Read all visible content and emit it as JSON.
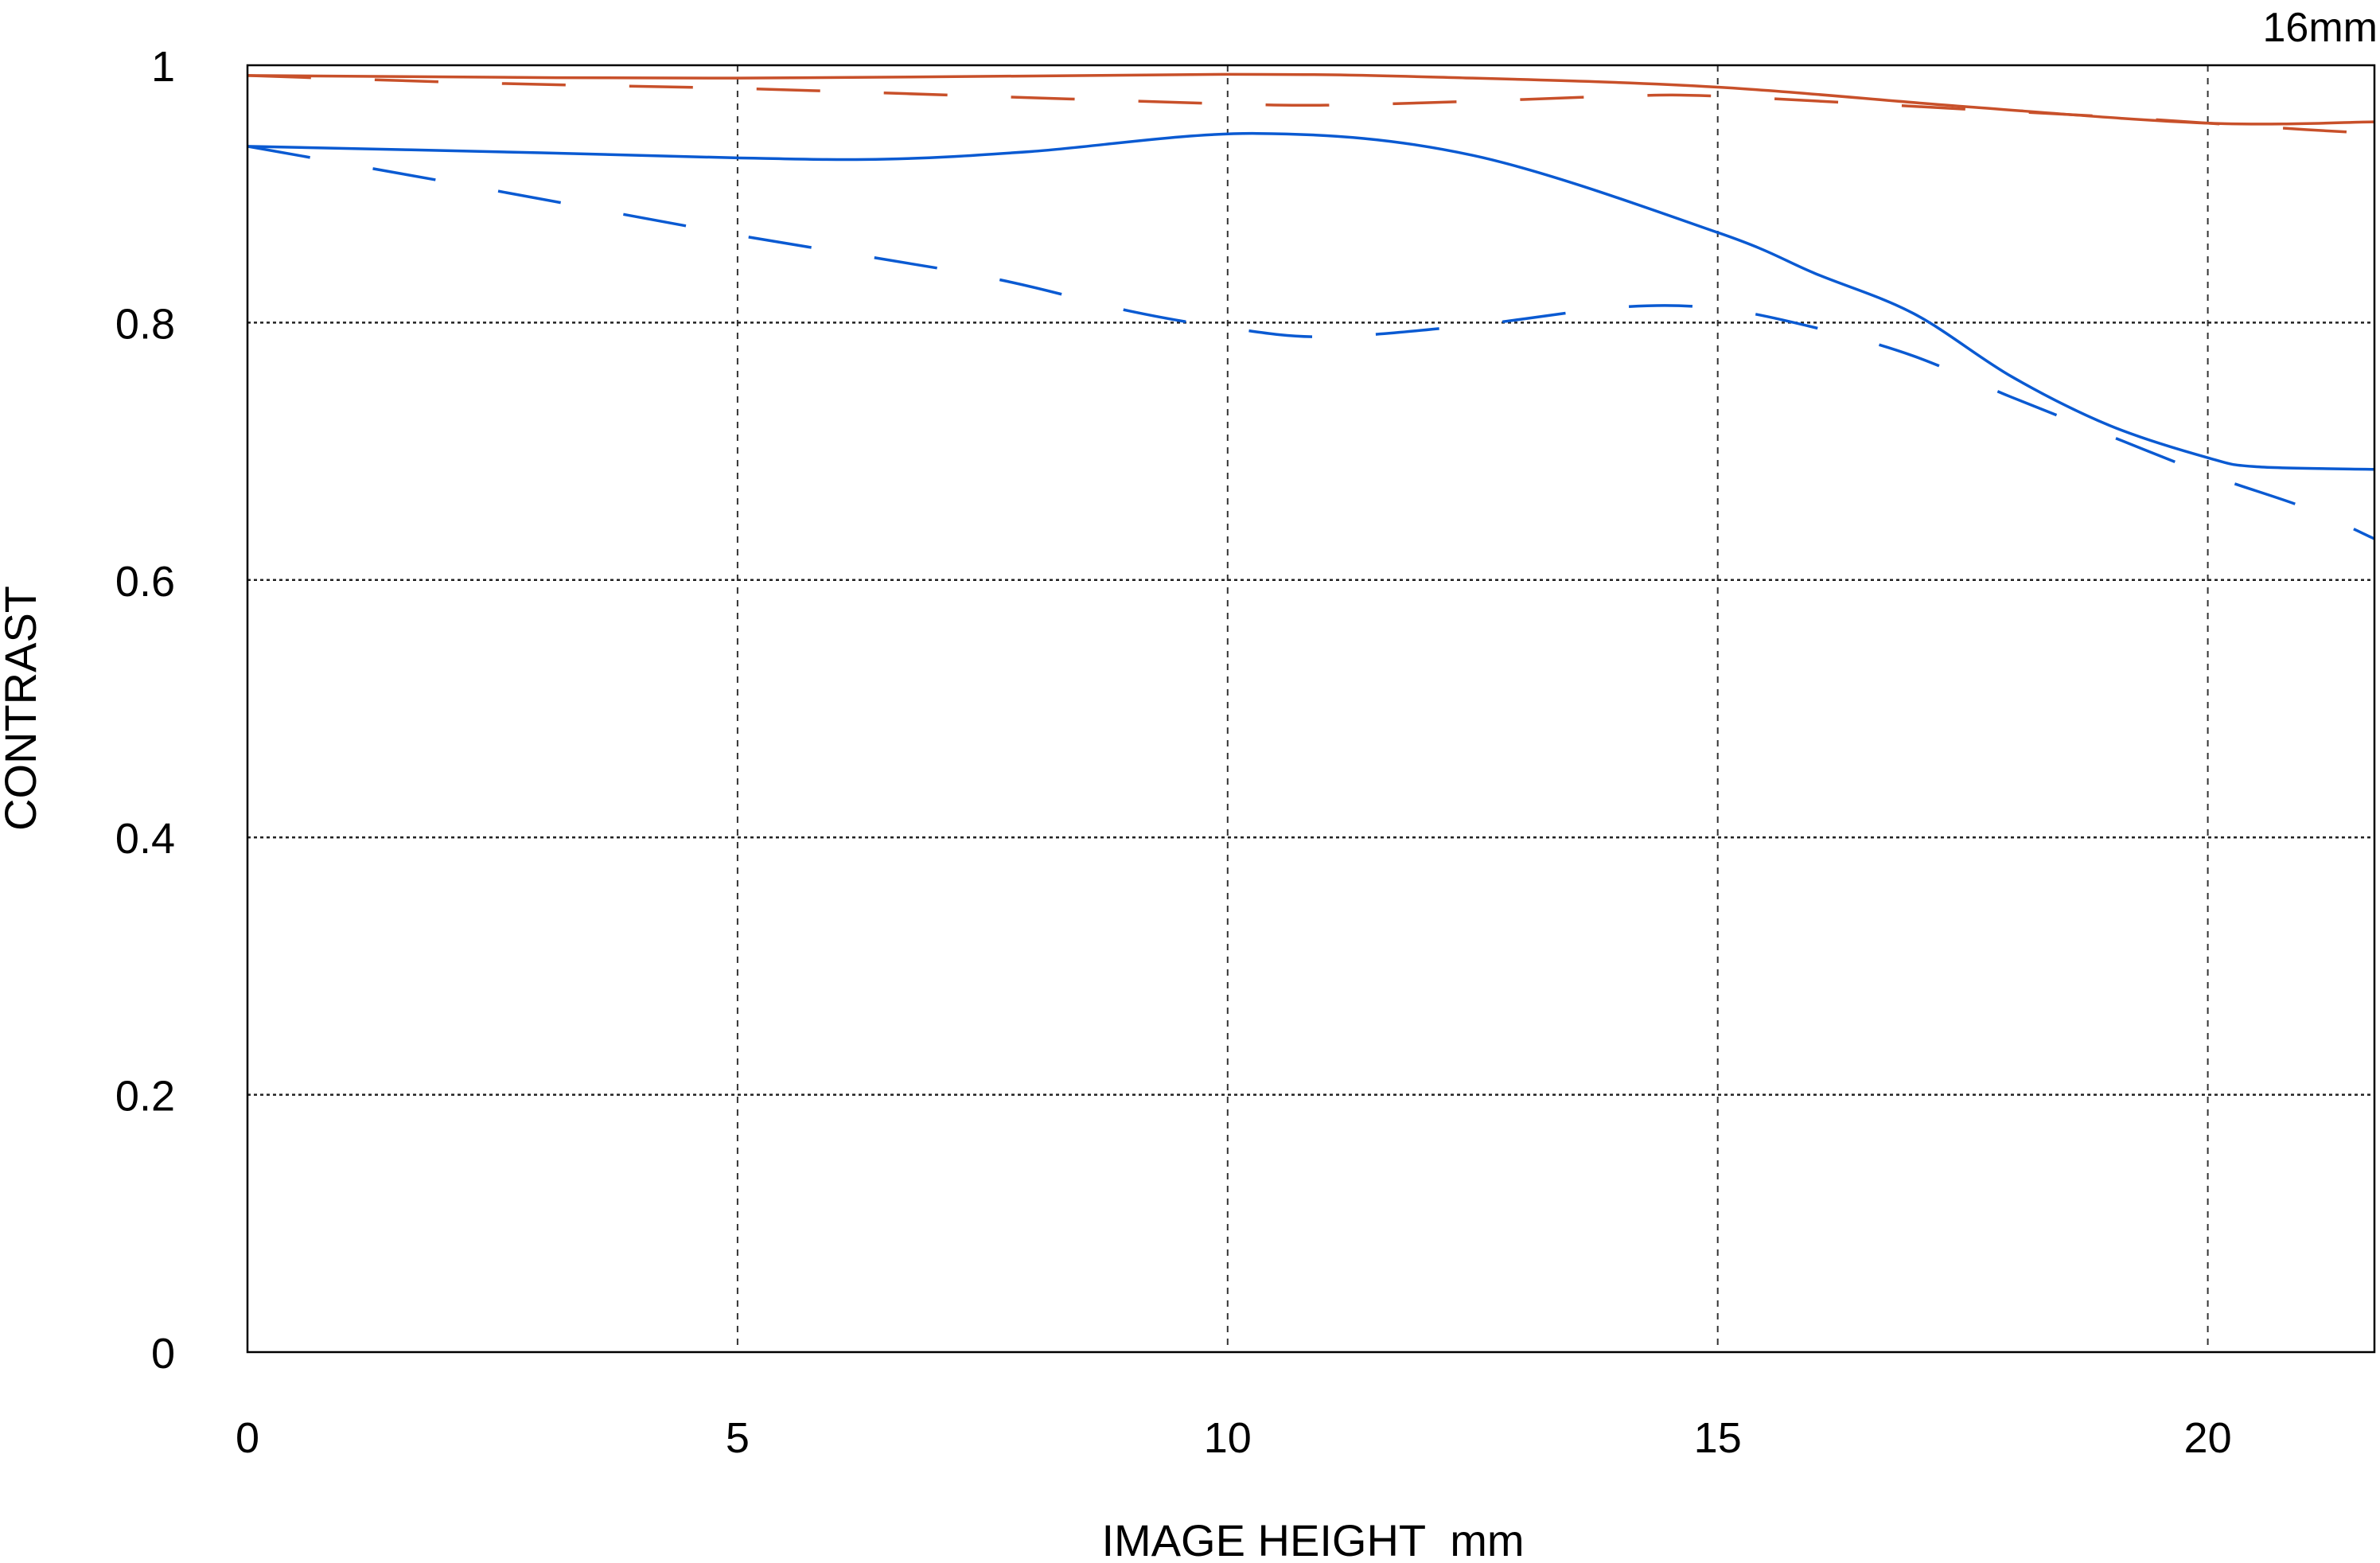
{
  "chart_data": {
    "type": "line",
    "title": "16mm",
    "xlabel": "IMAGE HEIGHT  mm",
    "ylabel": "CONTRAST",
    "xlim": [
      0,
      21.7
    ],
    "ylim": [
      0,
      1
    ],
    "xticks": [
      0,
      5,
      10,
      15,
      20
    ],
    "xtick_labels": [
      "0",
      "5",
      "10",
      "15",
      "20"
    ],
    "yticks": [
      0,
      0.2,
      0.4,
      0.6,
      0.8,
      1
    ],
    "ytick_labels": [
      "0",
      "0.2",
      "0.4",
      "0.6",
      "0.8",
      "1"
    ],
    "grid": true,
    "series": [
      {
        "color": "#c8502a",
        "dash": "solid",
        "x": [
          0,
          5,
          10,
          12.5,
          15,
          17.5,
          20,
          21.7
        ],
        "y": [
          0.992,
          0.99,
          0.993,
          0.99,
          0.983,
          0.968,
          0.955,
          0.956
        ]
      },
      {
        "color": "#c8502a",
        "dash": "dashed",
        "x": [
          0,
          2.5,
          5,
          7.5,
          10,
          11,
          12.5,
          14,
          15,
          17.5,
          19,
          20,
          21,
          21.7
        ],
        "y": [
          0.992,
          0.986,
          0.982,
          0.976,
          0.97,
          0.969,
          0.972,
          0.976,
          0.976,
          0.966,
          0.96,
          0.955,
          0.95,
          0.947
        ]
      },
      {
        "color": "#0a5ad2",
        "dash": "solid",
        "x": [
          0,
          3,
          5,
          6.5,
          8,
          10.3,
          12.5,
          15,
          16,
          17,
          18,
          19,
          20,
          20.5,
          21.7
        ],
        "y": [
          0.937,
          0.932,
          0.928,
          0.927,
          0.933,
          0.947,
          0.93,
          0.87,
          0.838,
          0.807,
          0.758,
          0.72,
          0.695,
          0.688,
          0.686
        ]
      },
      {
        "color": "#0a5ad2",
        "dash": "dashed",
        "x": [
          0,
          2.5,
          5,
          7.5,
          9,
          10,
          11,
          12.5,
          14,
          15,
          16,
          17,
          18,
          19,
          20,
          21,
          21.7
        ],
        "y": [
          0.937,
          0.903,
          0.868,
          0.836,
          0.809,
          0.796,
          0.789,
          0.798,
          0.812,
          0.811,
          0.796,
          0.774,
          0.742,
          0.712,
          0.682,
          0.656,
          0.632
        ]
      }
    ]
  }
}
